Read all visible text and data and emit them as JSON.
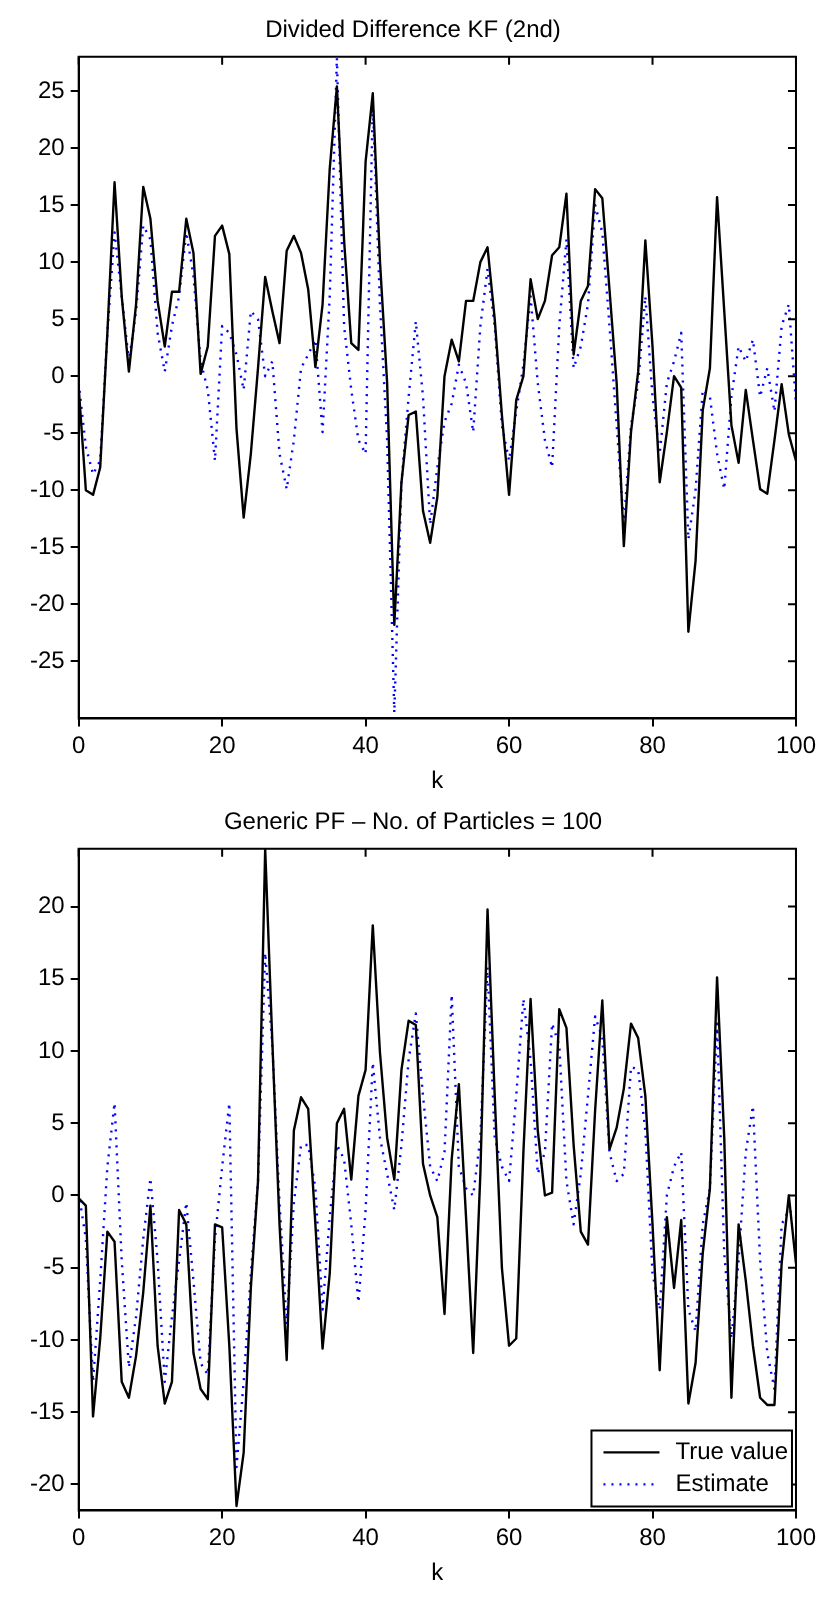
{
  "chart_data": [
    {
      "type": "line",
      "title": "Divided Difference KF (2nd)",
      "xlabel": "k",
      "xlim": [
        0,
        100
      ],
      "xticks": [
        0,
        20,
        40,
        60,
        80,
        100
      ],
      "ylim": [
        -30,
        28
      ],
      "yticks": [
        -25,
        -20,
        -15,
        -10,
        -5,
        0,
        5,
        10,
        15,
        20,
        25
      ],
      "grid": false,
      "marker": "none",
      "legend": false,
      "x": [
        0,
        1,
        2,
        3,
        4,
        5,
        6,
        7,
        8,
        9,
        10,
        11,
        12,
        13,
        14,
        15,
        16,
        17,
        18,
        19,
        20,
        21,
        22,
        23,
        24,
        25,
        26,
        27,
        28,
        29,
        30,
        31,
        32,
        33,
        34,
        35,
        36,
        37,
        38,
        39,
        40,
        41,
        42,
        43,
        44,
        45,
        46,
        47,
        48,
        49,
        50,
        51,
        52,
        53,
        54,
        55,
        56,
        57,
        58,
        59,
        60,
        61,
        62,
        63,
        64,
        65,
        66,
        67,
        68,
        69,
        70,
        71,
        72,
        73,
        74,
        75,
        76,
        77,
        78,
        79,
        80,
        81,
        82,
        83,
        84,
        85,
        86,
        87,
        88,
        89,
        90,
        91,
        92,
        93,
        94,
        95,
        96,
        97,
        98,
        99,
        100
      ],
      "series": [
        {
          "color": "#000000",
          "line_style": "solid",
          "values": [
            -1,
            -10,
            -10.4,
            -8,
            3.8,
            17,
            7,
            0.4,
            6.3,
            16.6,
            13.8,
            6.6,
            2.6,
            7.4,
            7.4,
            13.8,
            10.8,
            0.2,
            2.6,
            12.3,
            13.2,
            10.7,
            -4.6,
            -12.4,
            -6.8,
            0.7,
            8.7,
            5.7,
            2.9,
            11,
            12.3,
            10.8,
            7.6,
            0.8,
            6.3,
            18.2,
            25.4,
            11.9,
            2.9,
            2.3,
            18.8,
            24.8,
            10.1,
            -0.6,
            -21.8,
            -9.3,
            -3.4,
            -3.1,
            -11.8,
            -14.6,
            -10.6,
            0,
            3.2,
            1.3,
            6.6,
            6.6,
            10,
            11.3,
            5,
            -3.4,
            -10.4,
            -2.1,
            0,
            8.5,
            5,
            6.6,
            10.6,
            11.3,
            16,
            1.9,
            6.6,
            7.9,
            16.4,
            15.6,
            7.6,
            -0.6,
            -14.9,
            -4.9,
            0.4,
            11.9,
            2.6,
            -9.3,
            -4.9,
            0,
            -1,
            -22.4,
            -16.2,
            -3,
            0.7,
            15.7,
            5.7,
            -4.3,
            -7.6,
            -1.2,
            -5.6,
            -9.9,
            -10.3,
            -5.6,
            -0.7,
            -5.1,
            -7.4
          ]
        },
        {
          "color": "#0000ff",
          "line_style": "dotted",
          "values": [
            -0.6,
            -6.2,
            -8.6,
            -7.4,
            3.8,
            12.6,
            7,
            1.3,
            5.7,
            13.2,
            12,
            3.8,
            0.4,
            4.4,
            7,
            12.6,
            8.8,
            1.3,
            -1.2,
            -7.4,
            4.4,
            3.8,
            1.9,
            -1.2,
            5.7,
            5,
            0,
            1.3,
            -6.8,
            -9.9,
            -5.6,
            0.7,
            1.9,
            3.2,
            -4.9,
            7,
            27.9,
            4.4,
            -1.2,
            -5.6,
            -6.8,
            24.1,
            6.3,
            -5.6,
            -29.5,
            -9.3,
            -1.8,
            4.8,
            -1.8,
            -13,
            -8,
            -4,
            -2.4,
            1,
            -0.6,
            -4.9,
            4.4,
            9.4,
            4.4,
            -4.3,
            -7.4,
            -3.1,
            1,
            7,
            -0.6,
            -5.6,
            -8,
            4.4,
            12,
            0.7,
            2.6,
            6.3,
            15,
            12.6,
            4.4,
            -4.3,
            -13,
            -4.3,
            -0.6,
            7,
            -1.8,
            -6.8,
            -0.6,
            1.3,
            3.8,
            -14.3,
            -10,
            -1.2,
            -1.8,
            -6.8,
            -9.9,
            -1.8,
            2.6,
            1.3,
            3.2,
            -1.8,
            0.7,
            -3.1,
            4.4,
            6.3,
            -2.4
          ]
        }
      ]
    },
    {
      "type": "line",
      "title": "Generic PF – No. of Particles = 100",
      "xlabel": "k",
      "xlim": [
        0,
        100
      ],
      "xticks": [
        0,
        20,
        40,
        60,
        80,
        100
      ],
      "ylim": [
        -21.8,
        24
      ],
      "yticks": [
        -20,
        -15,
        -10,
        -5,
        0,
        5,
        10,
        15,
        20
      ],
      "grid": false,
      "marker": "none",
      "legend": "bottom right",
      "x": [
        0,
        1,
        2,
        3,
        4,
        5,
        6,
        7,
        8,
        9,
        10,
        11,
        12,
        13,
        14,
        15,
        16,
        17,
        18,
        19,
        20,
        21,
        22,
        23,
        24,
        25,
        26,
        27,
        28,
        29,
        30,
        31,
        32,
        33,
        34,
        35,
        36,
        37,
        38,
        39,
        40,
        41,
        42,
        43,
        44,
        45,
        46,
        47,
        48,
        49,
        50,
        51,
        52,
        53,
        54,
        55,
        56,
        57,
        58,
        59,
        60,
        61,
        62,
        63,
        64,
        65,
        66,
        67,
        68,
        69,
        70,
        71,
        72,
        73,
        74,
        75,
        76,
        77,
        78,
        79,
        80,
        81,
        82,
        83,
        84,
        85,
        86,
        87,
        88,
        89,
        90,
        91,
        92,
        93,
        94,
        95,
        96,
        97,
        98,
        99,
        100
      ],
      "series": [
        {
          "name": "True value",
          "color": "#000000",
          "line_style": "solid",
          "values": [
            -0.2,
            -0.7,
            -15.3,
            -9.9,
            -2.5,
            -3.2,
            -12.9,
            -14,
            -11.1,
            -6.7,
            -0.7,
            -10.4,
            -14.4,
            -12.9,
            -1,
            -2,
            -10.9,
            -13.4,
            -14.1,
            -2,
            -2.2,
            -10.4,
            -21.5,
            -17.8,
            -6.4,
            1,
            24,
            10.6,
            -2,
            -11.4,
            4.5,
            6.8,
            6,
            -2,
            -10.6,
            -5.4,
            5,
            6,
            1.1,
            6.9,
            8.7,
            18.7,
            9.9,
            4,
            1.1,
            8.7,
            12.1,
            11.8,
            2.2,
            0,
            -1.5,
            -8.2,
            2.5,
            7.7,
            -1.5,
            -10.9,
            1.5,
            19.8,
            6.9,
            -5,
            -10.4,
            -9.9,
            3,
            13.6,
            4.5,
            0,
            0.2,
            12.9,
            11.6,
            3.5,
            -2.5,
            -3.4,
            5.9,
            13.5,
            3.2,
            4.7,
            7.4,
            11.9,
            10.9,
            6.9,
            -2,
            -12.1,
            -1.5,
            -6.4,
            -1.7,
            -14.4,
            -11.6,
            -4,
            0.5,
            15.1,
            4,
            -14,
            -2,
            -5.9,
            -10.4,
            -14,
            -14.5,
            -14.5,
            -4.7,
            0,
            -4.7
          ]
        },
        {
          "name": "Estimate",
          "color": "#0000ff",
          "line_style": "dotted",
          "values": [
            0.2,
            -3,
            -12.9,
            -5.9,
            2,
            6.4,
            -4.5,
            -11.9,
            -8.4,
            -3,
            1.2,
            -4.5,
            -12.9,
            -8.4,
            -4.5,
            -0.5,
            -5.9,
            -11.6,
            -12.4,
            -3,
            2,
            6.4,
            -18.8,
            -12.9,
            -5.4,
            1,
            16.8,
            10.4,
            -0.5,
            -8.9,
            -0.5,
            3.5,
            3.5,
            0.5,
            -7.9,
            -1.5,
            3.5,
            2.5,
            -2,
            -7.4,
            -1,
            9.2,
            4,
            1.5,
            -1,
            3.5,
            9.4,
            12.6,
            6.9,
            2,
            1,
            3,
            13.9,
            2,
            0.5,
            0,
            4,
            15.8,
            4,
            2,
            1,
            6.9,
            13.6,
            9.4,
            1.5,
            3,
            11.9,
            10.4,
            1,
            -2,
            1.5,
            6.9,
            12.4,
            10.9,
            3,
            1,
            1.5,
            8.9,
            8.7,
            4.5,
            -5.4,
            -7.9,
            0,
            2,
            3,
            -7.9,
            -9.4,
            -2,
            0.5,
            11.9,
            -4,
            -9.9,
            -4.5,
            3,
            6.2,
            -4.5,
            -10.9,
            -13.4,
            -2,
            -1,
            -1.5
          ]
        }
      ]
    }
  ]
}
